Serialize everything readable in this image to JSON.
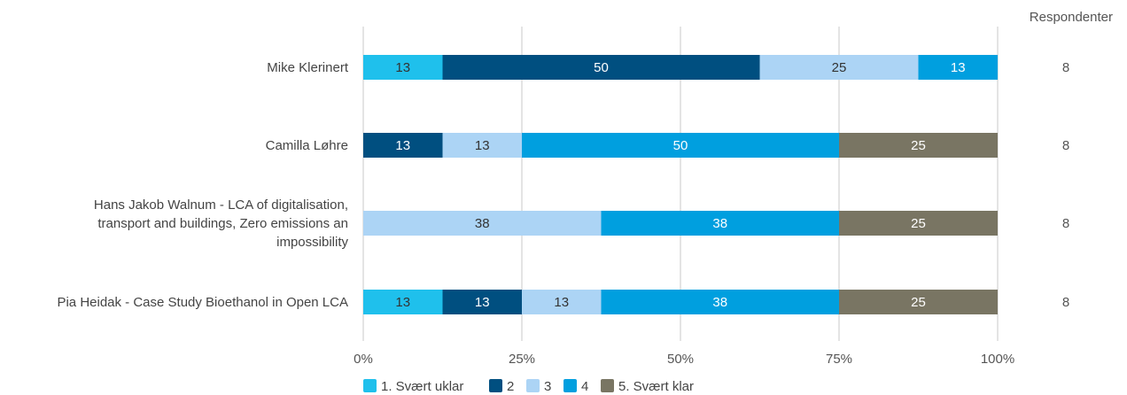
{
  "chart_data": {
    "type": "bar",
    "orientation": "horizontal",
    "stacked": true,
    "normalized_percent": true,
    "categories": [
      {
        "lines": [
          "Mike Klerinert"
        ]
      },
      {
        "lines": [
          "Camilla Løhre"
        ]
      },
      {
        "lines": [
          "Hans Jakob Walnum - LCA of digitalisation,",
          "transport and buildings, Zero emissions an",
          "impossibility"
        ]
      },
      {
        "lines": [
          "Pia Heidak - Case Study Bioethanol in Open LCA"
        ]
      }
    ],
    "series": [
      {
        "name": "1. Svært uklar",
        "color": "#1fc0ec",
        "text_color": "#333333",
        "values": [
          13,
          0,
          0,
          13
        ],
        "labels": [
          "13",
          "",
          "",
          "13"
        ]
      },
      {
        "name": "2",
        "color": "#004f80",
        "text_color": "#ffffff",
        "values": [
          50,
          13,
          0,
          13
        ],
        "labels": [
          "50",
          "13",
          "",
          "13"
        ]
      },
      {
        "name": "3",
        "color": "#acd4f5",
        "text_color": "#333333",
        "values": [
          25,
          13,
          38,
          13
        ],
        "labels": [
          "25",
          "13",
          "38",
          "13"
        ]
      },
      {
        "name": "4",
        "color": "#009fdf",
        "text_color": "#ffffff",
        "values": [
          13,
          50,
          38,
          38
        ],
        "labels": [
          "13",
          "50",
          "38",
          "38"
        ]
      },
      {
        "name": "5. Svært klar",
        "color": "#797563",
        "text_color": "#ffffff",
        "values": [
          0,
          25,
          25,
          25
        ],
        "labels": [
          "",
          "25",
          "25",
          "25"
        ]
      }
    ],
    "exact_shares": [
      [
        12.5,
        50,
        25,
        12.5,
        0
      ],
      [
        0,
        12.5,
        12.5,
        50,
        25
      ],
      [
        0,
        0,
        37.5,
        37.5,
        25
      ],
      [
        12.5,
        12.5,
        12.5,
        37.5,
        25
      ]
    ],
    "xlim": [
      0,
      100
    ],
    "xticks": [
      "0%",
      "25%",
      "50%",
      "75%",
      "100%"
    ],
    "grid": true,
    "legend_position": "bottom",
    "respondents_header": "Respondenter",
    "respondents": [
      "8",
      "8",
      "8",
      "8"
    ]
  }
}
